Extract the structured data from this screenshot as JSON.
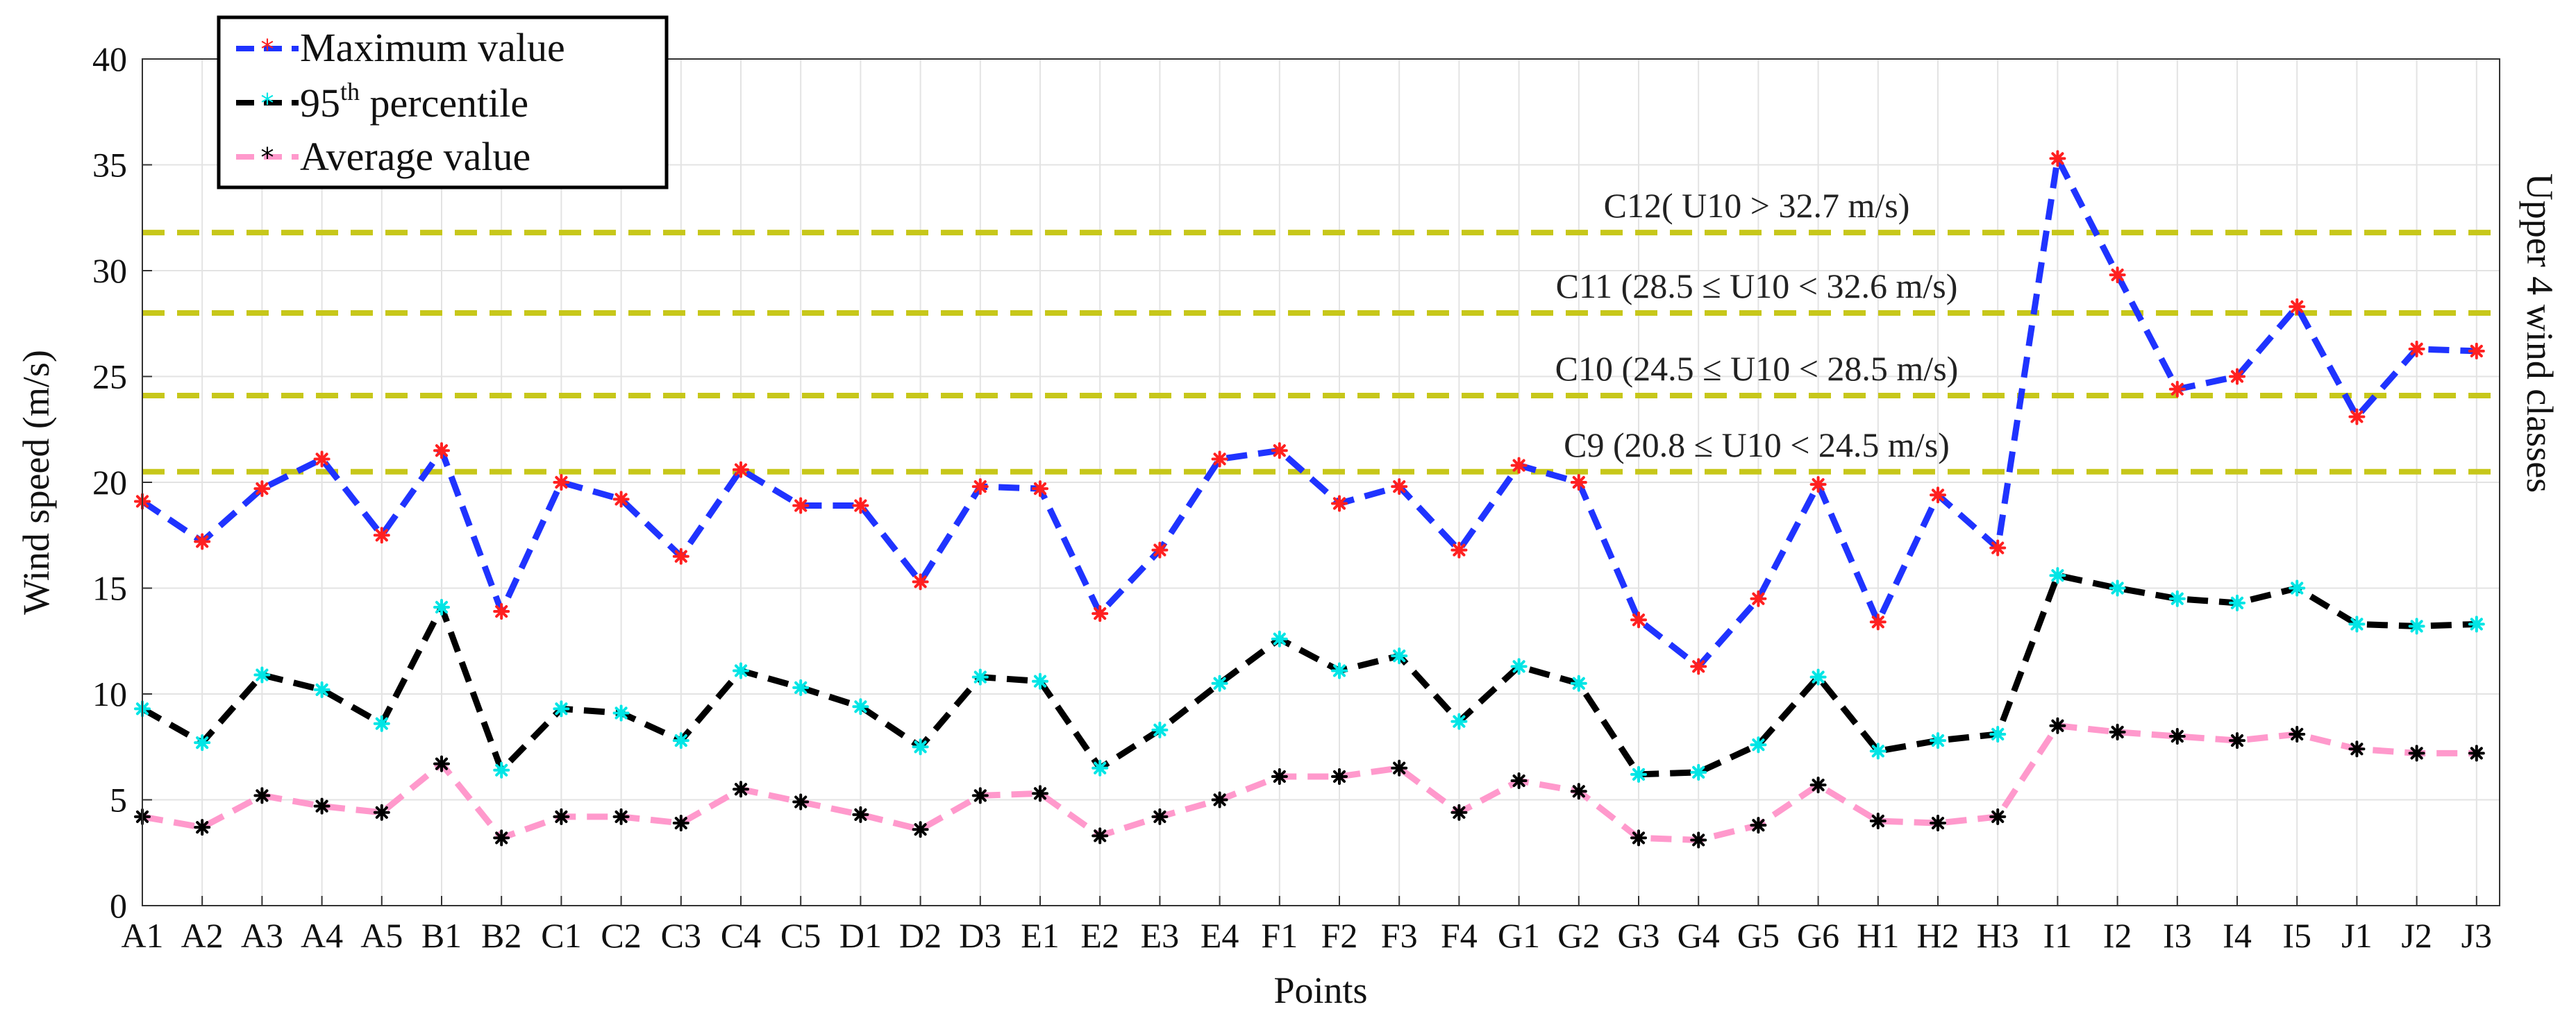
{
  "chart_data": {
    "type": "line",
    "title": "",
    "xlabel": "Points",
    "ylabel": "Wind speed (m/s)",
    "right_label": "Upper 4 wind classes",
    "ylim": [
      0,
      40
    ],
    "yticks": [
      "0",
      "5",
      "10",
      "15",
      "20",
      "25",
      "30",
      "35",
      "40"
    ],
    "grid": true,
    "legend_position": "top-left",
    "categories": [
      "A1",
      "A2",
      "A3",
      "A4",
      "A5",
      "B1",
      "B2",
      "C1",
      "C2",
      "C3",
      "C4",
      "C5",
      "D1",
      "D2",
      "D3",
      "E1",
      "E2",
      "E3",
      "E4",
      "F1",
      "F2",
      "F3",
      "F4",
      "G1",
      "G2",
      "G3",
      "G4",
      "G5",
      "G6",
      "H1",
      "H2",
      "H3",
      "I1",
      "I2",
      "I3",
      "I4",
      "I5",
      "J1",
      "J2",
      "J3"
    ],
    "series": [
      {
        "name": "Maximum value",
        "color": "#1f33ff",
        "marker_color": "#ff2020",
        "values": [
          19.1,
          17.2,
          19.7,
          21.1,
          17.5,
          21.5,
          13.9,
          20.0,
          19.2,
          16.5,
          20.6,
          18.9,
          18.9,
          15.3,
          19.8,
          19.7,
          13.8,
          16.8,
          21.1,
          21.5,
          19.0,
          19.8,
          16.8,
          20.8,
          20.0,
          13.5,
          11.3,
          14.5,
          19.9,
          13.4,
          19.4,
          16.9,
          35.3,
          29.8,
          24.4,
          25.0,
          28.3,
          23.1,
          26.3,
          26.2
        ]
      },
      {
        "name": "95th percentile",
        "color": "#000000",
        "marker_color": "#00e5e5",
        "values": [
          9.3,
          7.7,
          10.9,
          10.2,
          8.6,
          14.1,
          6.4,
          9.3,
          9.1,
          7.8,
          11.1,
          10.3,
          9.4,
          7.5,
          10.8,
          10.6,
          6.5,
          8.3,
          10.5,
          12.6,
          11.1,
          11.8,
          8.7,
          11.3,
          10.5,
          6.2,
          6.3,
          7.6,
          10.8,
          7.3,
          7.8,
          8.1,
          15.6,
          15.0,
          14.5,
          14.3,
          15.0,
          13.3,
          13.2,
          13.3
        ]
      },
      {
        "name": "Average value",
        "color": "#ff99cc",
        "marker_color": "#000000",
        "values": [
          4.2,
          3.7,
          5.2,
          4.7,
          4.4,
          6.7,
          3.2,
          4.2,
          4.2,
          3.9,
          5.5,
          4.9,
          4.3,
          3.6,
          5.2,
          5.3,
          3.3,
          4.2,
          5.0,
          6.1,
          6.1,
          6.5,
          4.4,
          5.9,
          5.4,
          3.2,
          3.1,
          3.8,
          5.7,
          4.0,
          3.9,
          4.2,
          8.5,
          8.2,
          8.0,
          7.8,
          8.1,
          7.4,
          7.2,
          7.2
        ]
      }
    ],
    "thresholds": {
      "color": "#c7c71a",
      "lines": [
        {
          "value": 31.8,
          "label": "C12( U10 > 32.7 m/s)"
        },
        {
          "value": 28.0,
          "label": "C11 (28.5 ≤ U10 < 32.6 m/s)"
        },
        {
          "value": 24.1,
          "label": "C10 (24.5 ≤ U10 < 28.5 m/s)"
        },
        {
          "value": 20.5,
          "label": "C9 (20.8 ≤ U10 < 24.5 m/s)"
        }
      ]
    },
    "legend": {
      "items": [
        {
          "label": "Maximum value"
        },
        {
          "label": "95",
          "sup": "th",
          "label_rest": " percentile"
        },
        {
          "label": "Average value"
        }
      ]
    }
  }
}
